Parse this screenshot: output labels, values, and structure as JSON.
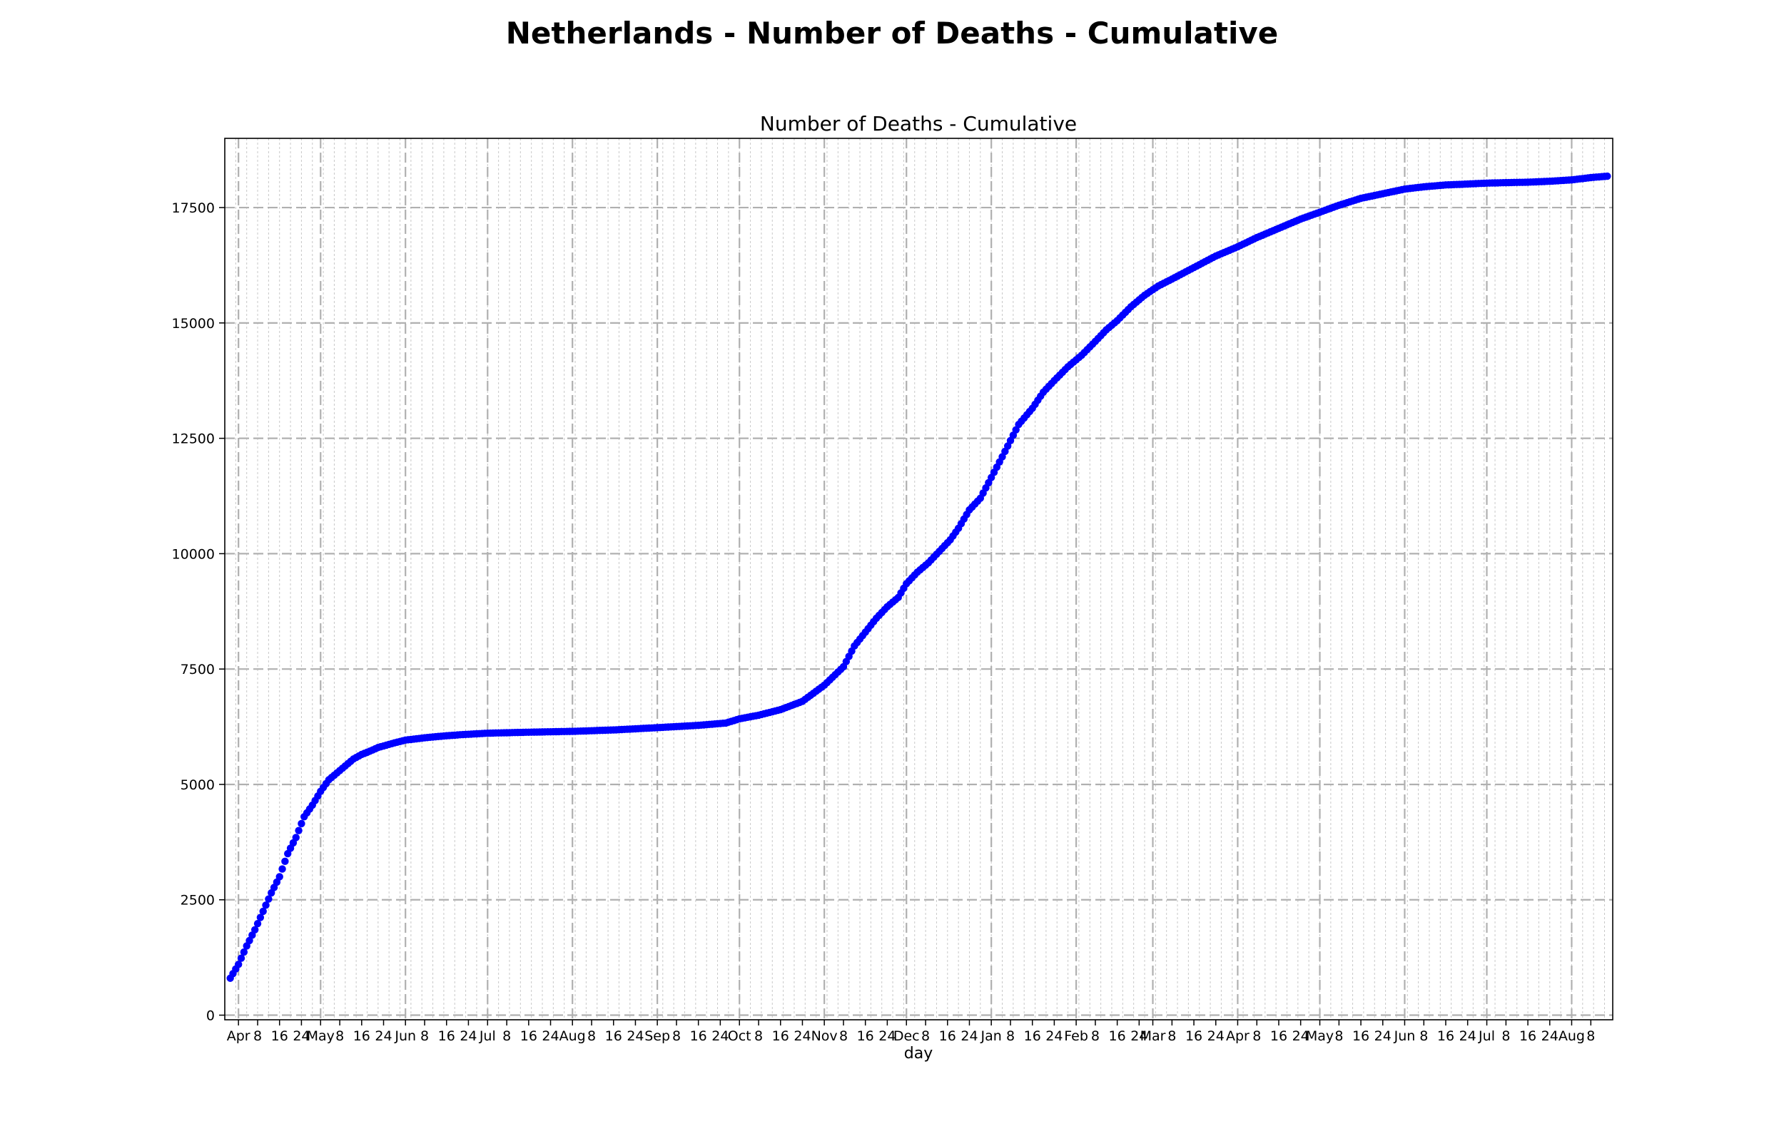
{
  "figure": {
    "suptitle": "Netherlands - Number of Deaths - Cumulative"
  },
  "chart_data": {
    "type": "scatter",
    "title": "Number of Deaths - Cumulative",
    "xlabel": "day",
    "ylabel": "",
    "x_type": "date",
    "xlim": [
      "2020-03-27",
      "2021-08-16"
    ],
    "ylim": [
      -100,
      19000
    ],
    "yticks": [
      0,
      2500,
      5000,
      7500,
      10000,
      12500,
      15000,
      17500
    ],
    "grid": {
      "major": "dashed",
      "minor": "dotted"
    },
    "color": "#0000ff",
    "xtick_labels": [
      {
        "date": "2020-04-01",
        "label": "Apr"
      },
      {
        "date": "2020-04-08",
        "label": "8"
      },
      {
        "date": "2020-04-16",
        "label": "16"
      },
      {
        "date": "2020-04-24",
        "label": "24"
      },
      {
        "date": "2020-05-01",
        "label": "May"
      },
      {
        "date": "2020-05-08",
        "label": "8"
      },
      {
        "date": "2020-05-16",
        "label": "16"
      },
      {
        "date": "2020-05-24",
        "label": "24"
      },
      {
        "date": "2020-06-01",
        "label": "Jun"
      },
      {
        "date": "2020-06-08",
        "label": "8"
      },
      {
        "date": "2020-06-16",
        "label": "16"
      },
      {
        "date": "2020-06-24",
        "label": "24"
      },
      {
        "date": "2020-07-01",
        "label": "Jul"
      },
      {
        "date": "2020-07-08",
        "label": "8"
      },
      {
        "date": "2020-07-16",
        "label": "16"
      },
      {
        "date": "2020-07-24",
        "label": "24"
      },
      {
        "date": "2020-08-01",
        "label": "Aug"
      },
      {
        "date": "2020-08-08",
        "label": "8"
      },
      {
        "date": "2020-08-16",
        "label": "16"
      },
      {
        "date": "2020-08-24",
        "label": "24"
      },
      {
        "date": "2020-09-01",
        "label": "Sep"
      },
      {
        "date": "2020-09-08",
        "label": "8"
      },
      {
        "date": "2020-09-16",
        "label": "16"
      },
      {
        "date": "2020-09-24",
        "label": "24"
      },
      {
        "date": "2020-10-01",
        "label": "Oct"
      },
      {
        "date": "2020-10-08",
        "label": "8"
      },
      {
        "date": "2020-10-16",
        "label": "16"
      },
      {
        "date": "2020-10-24",
        "label": "24"
      },
      {
        "date": "2020-11-01",
        "label": "Nov"
      },
      {
        "date": "2020-11-08",
        "label": "8"
      },
      {
        "date": "2020-11-16",
        "label": "16"
      },
      {
        "date": "2020-11-24",
        "label": "24"
      },
      {
        "date": "2020-12-01",
        "label": "Dec"
      },
      {
        "date": "2020-12-08",
        "label": "8"
      },
      {
        "date": "2020-12-16",
        "label": "16"
      },
      {
        "date": "2020-12-24",
        "label": "24"
      },
      {
        "date": "2021-01-01",
        "label": "Jan"
      },
      {
        "date": "2021-01-08",
        "label": "8"
      },
      {
        "date": "2021-01-16",
        "label": "16"
      },
      {
        "date": "2021-01-24",
        "label": "24"
      },
      {
        "date": "2021-02-01",
        "label": "Feb"
      },
      {
        "date": "2021-02-08",
        "label": "8"
      },
      {
        "date": "2021-02-16",
        "label": "16"
      },
      {
        "date": "2021-02-24",
        "label": "24"
      },
      {
        "date": "2021-03-01",
        "label": "Mar"
      },
      {
        "date": "2021-03-08",
        "label": "8"
      },
      {
        "date": "2021-03-16",
        "label": "16"
      },
      {
        "date": "2021-03-24",
        "label": "24"
      },
      {
        "date": "2021-04-01",
        "label": "Apr"
      },
      {
        "date": "2021-04-08",
        "label": "8"
      },
      {
        "date": "2021-04-16",
        "label": "16"
      },
      {
        "date": "2021-04-24",
        "label": "24"
      },
      {
        "date": "2021-05-01",
        "label": "May"
      },
      {
        "date": "2021-05-08",
        "label": "8"
      },
      {
        "date": "2021-05-16",
        "label": "16"
      },
      {
        "date": "2021-05-24",
        "label": "24"
      },
      {
        "date": "2021-06-01",
        "label": "Jun"
      },
      {
        "date": "2021-06-08",
        "label": "8"
      },
      {
        "date": "2021-06-16",
        "label": "16"
      },
      {
        "date": "2021-06-24",
        "label": "24"
      },
      {
        "date": "2021-07-01",
        "label": "Jul"
      },
      {
        "date": "2021-07-08",
        "label": "8"
      },
      {
        "date": "2021-07-16",
        "label": "16"
      },
      {
        "date": "2021-07-24",
        "label": "24"
      },
      {
        "date": "2021-08-01",
        "label": "Aug"
      },
      {
        "date": "2021-08-08",
        "label": "8"
      }
    ],
    "series": [
      {
        "points": [
          [
            "2020-03-29",
            800
          ],
          [
            "2020-04-01",
            1100
          ],
          [
            "2020-04-04",
            1500
          ],
          [
            "2020-04-07",
            1850
          ],
          [
            "2020-04-10",
            2250
          ],
          [
            "2020-04-13",
            2650
          ],
          [
            "2020-04-16",
            3000
          ],
          [
            "2020-04-19",
            3500
          ],
          [
            "2020-04-22",
            3850
          ],
          [
            "2020-04-25",
            4300
          ],
          [
            "2020-04-28",
            4550
          ],
          [
            "2020-05-01",
            4850
          ],
          [
            "2020-05-04",
            5100
          ],
          [
            "2020-05-07",
            5250
          ],
          [
            "2020-05-10",
            5400
          ],
          [
            "2020-05-13",
            5550
          ],
          [
            "2020-05-16",
            5650
          ],
          [
            "2020-05-19",
            5720
          ],
          [
            "2020-05-22",
            5800
          ],
          [
            "2020-05-25",
            5850
          ],
          [
            "2020-05-28",
            5900
          ],
          [
            "2020-06-01",
            5960
          ],
          [
            "2020-06-08",
            6010
          ],
          [
            "2020-06-15",
            6050
          ],
          [
            "2020-06-22",
            6080
          ],
          [
            "2020-07-01",
            6110
          ],
          [
            "2020-07-15",
            6130
          ],
          [
            "2020-08-01",
            6150
          ],
          [
            "2020-08-16",
            6180
          ],
          [
            "2020-09-01",
            6230
          ],
          [
            "2020-09-16",
            6280
          ],
          [
            "2020-09-26",
            6330
          ],
          [
            "2020-10-01",
            6420
          ],
          [
            "2020-10-08",
            6500
          ],
          [
            "2020-10-16",
            6620
          ],
          [
            "2020-10-24",
            6800
          ],
          [
            "2020-11-01",
            7150
          ],
          [
            "2020-11-08",
            7550
          ],
          [
            "2020-11-12",
            8000
          ],
          [
            "2020-11-16",
            8300
          ],
          [
            "2020-11-20",
            8600
          ],
          [
            "2020-11-24",
            8850
          ],
          [
            "2020-11-28",
            9050
          ],
          [
            "2020-12-01",
            9350
          ],
          [
            "2020-12-05",
            9600
          ],
          [
            "2020-12-09",
            9800
          ],
          [
            "2020-12-13",
            10050
          ],
          [
            "2020-12-17",
            10300
          ],
          [
            "2020-12-20",
            10550
          ],
          [
            "2020-12-24",
            10950
          ],
          [
            "2020-12-28",
            11200
          ],
          [
            "2021-01-01",
            11650
          ],
          [
            "2021-01-05",
            12100
          ],
          [
            "2021-01-08",
            12450
          ],
          [
            "2021-01-11",
            12800
          ],
          [
            "2021-01-16",
            13150
          ],
          [
            "2021-01-20",
            13500
          ],
          [
            "2021-01-24",
            13750
          ],
          [
            "2021-01-29",
            14050
          ],
          [
            "2021-02-03",
            14300
          ],
          [
            "2021-02-08",
            14600
          ],
          [
            "2021-02-12",
            14850
          ],
          [
            "2021-02-16",
            15050
          ],
          [
            "2021-02-21",
            15350
          ],
          [
            "2021-02-26",
            15600
          ],
          [
            "2021-03-03",
            15800
          ],
          [
            "2021-03-08",
            15950
          ],
          [
            "2021-03-16",
            16200
          ],
          [
            "2021-03-24",
            16450
          ],
          [
            "2021-04-01",
            16650
          ],
          [
            "2021-04-08",
            16850
          ],
          [
            "2021-04-16",
            17050
          ],
          [
            "2021-04-24",
            17250
          ],
          [
            "2021-05-01",
            17400
          ],
          [
            "2021-05-08",
            17550
          ],
          [
            "2021-05-16",
            17700
          ],
          [
            "2021-05-24",
            17800
          ],
          [
            "2021-06-01",
            17900
          ],
          [
            "2021-06-08",
            17950
          ],
          [
            "2021-06-16",
            17990
          ],
          [
            "2021-06-24",
            18010
          ],
          [
            "2021-07-01",
            18030
          ],
          [
            "2021-07-08",
            18040
          ],
          [
            "2021-07-16",
            18050
          ],
          [
            "2021-07-24",
            18070
          ],
          [
            "2021-08-01",
            18100
          ],
          [
            "2021-08-08",
            18150
          ],
          [
            "2021-08-14",
            18180
          ]
        ]
      }
    ]
  }
}
